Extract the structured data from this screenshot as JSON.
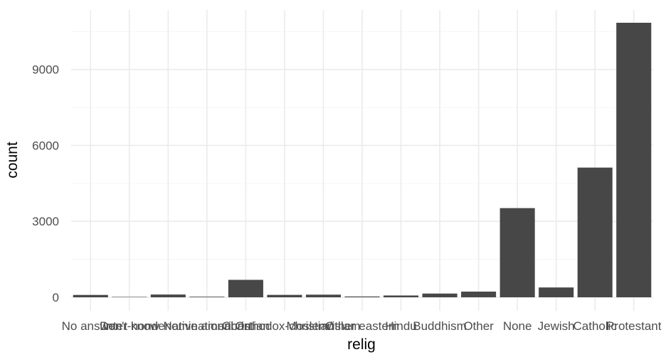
{
  "chart_data": {
    "type": "bar",
    "categories": [
      "No answer",
      "Don't know",
      "Inter-nondenominational",
      "Native american",
      "Christian",
      "Orthodox-christian",
      "Moslem/islam",
      "Other eastern",
      "Hindu",
      "Buddhism",
      "Other",
      "None",
      "Jewish",
      "Catholic",
      "Protestant"
    ],
    "values": [
      93,
      15,
      109,
      23,
      689,
      95,
      104,
      32,
      71,
      147,
      224,
      3523,
      388,
      5124,
      10846
    ],
    "title": "",
    "xlabel": "relig",
    "ylabel": "count",
    "ylim": [
      0,
      10846
    ],
    "yticks": [
      0,
      3000,
      6000,
      9000
    ],
    "grid": true,
    "legend": "none",
    "colors": {
      "bar": "#474747",
      "grid_major": "#ebebeb",
      "grid_minor": "#f5f5f5",
      "text": "#4d4d4d",
      "title": "#000000"
    }
  }
}
